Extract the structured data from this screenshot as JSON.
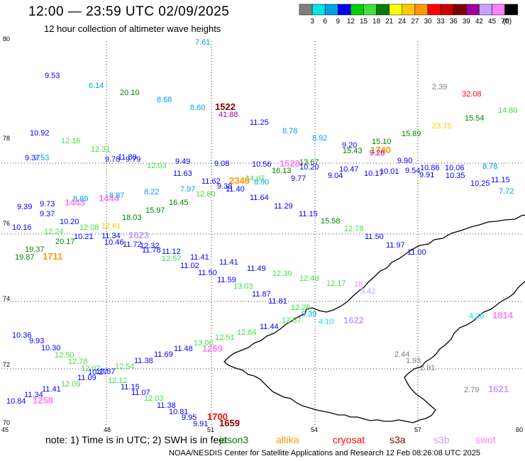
{
  "header": {
    "title": "12:00 — 23:59 UTC 02/09/2025",
    "subtitle": "12 hour collection of altimeter wave heights"
  },
  "scale": {
    "colors": [
      "#808080",
      "#00e5e5",
      "#00a0e8",
      "#0000ff",
      "#00d000",
      "#40e040",
      "#008000",
      "#ffff00",
      "#ffcc00",
      "#ff9900",
      "#ff0000",
      "#cc0000",
      "#800000",
      "#a000a0",
      "#c8a0ff",
      "#ff80ff",
      "#000000"
    ],
    "labels": [
      "3",
      "6",
      "9",
      "12",
      "15",
      "18",
      "21",
      "24",
      "27",
      "30",
      "33",
      "36",
      "39",
      "42",
      "45",
      "70"
    ],
    "unit": "(ft)"
  },
  "map": {
    "lat_labels": [
      "80",
      "78",
      "76",
      "74",
      "72",
      "70"
    ],
    "lon_labels": [
      "45",
      "48",
      "51",
      "54",
      "57",
      "60"
    ]
  },
  "notes": {
    "prefix": "note:  1) Time is in UTC; 2) SWH is in feet",
    "credit": "NOAA/NESDIS Center for Satellite Applications and Research     12 Feb 08:26:08 UTC 2025"
  },
  "satellites": [
    {
      "name": "jason3",
      "color": "#008000"
    },
    {
      "name": "altika",
      "color": "#ff9900"
    },
    {
      "name": "cryosat",
      "color": "#ff0000"
    },
    {
      "name": "s3a",
      "color": "#800000"
    },
    {
      "name": "s3b",
      "color": "#c8a0ff"
    },
    {
      "name": "swot",
      "color": "#ff80ff"
    }
  ],
  "observations": [
    {
      "t": "7.61",
      "c": "#00a0e8"
    },
    {
      "t": "9.53",
      "c": "#0000ff"
    },
    {
      "t": "6.14",
      "c": "#00a0e8"
    },
    {
      "t": "20.10",
      "c": "#008000"
    },
    {
      "t": "8.68",
      "c": "#00a0e8"
    },
    {
      "t": "8.60",
      "c": "#00a0e8"
    },
    {
      "t": "1522",
      "c": "#800000"
    },
    {
      "t": "41.88",
      "c": "#a000a0"
    },
    {
      "t": "2.39",
      "c": "#808080"
    },
    {
      "t": "32.08",
      "c": "#ff0000"
    },
    {
      "t": "15.54",
      "c": "#008000"
    },
    {
      "t": "14.80",
      "c": "#40e040"
    },
    {
      "t": "11.25",
      "c": "#0000ff"
    },
    {
      "t": "8.78",
      "c": "#00a0e8"
    },
    {
      "t": "8.92",
      "c": "#00a0e8"
    },
    {
      "t": "23.15",
      "c": "#ffcc00"
    },
    {
      "t": "10.92",
      "c": "#0000ff"
    },
    {
      "t": "12.16",
      "c": "#40e040"
    },
    {
      "t": "15.89",
      "c": "#008000"
    },
    {
      "t": "15.10",
      "c": "#008000"
    },
    {
      "t": "9.20",
      "c": "#0000ff"
    },
    {
      "t": "15.43",
      "c": "#008000"
    },
    {
      "t": "1740",
      "c": "#ff9900"
    },
    {
      "t": "9.26",
      "c": "#a000a0"
    },
    {
      "t": "12.31",
      "c": "#40e040"
    },
    {
      "t": "9.37",
      "c": "#0000ff"
    },
    {
      "t": "7.53",
      "c": "#00a0e8"
    },
    {
      "t": "9.78",
      "c": "#0000ff"
    },
    {
      "t": "11.80",
      "c": "#0000ff"
    },
    {
      "t": "9.79",
      "c": "#0000ff"
    },
    {
      "t": "12.03",
      "c": "#40e040"
    },
    {
      "t": "9.49",
      "c": "#0000ff"
    },
    {
      "t": "9.08",
      "c": "#0000ff"
    },
    {
      "t": "10.56",
      "c": "#0000ff"
    },
    {
      "t": "1528",
      "c": "#ff80ff"
    },
    {
      "t": "13.67",
      "c": "#008000"
    },
    {
      "t": "10.20",
      "c": "#0000ff"
    },
    {
      "t": "9.90",
      "c": "#0000ff"
    },
    {
      "t": "10.86",
      "c": "#0000ff"
    },
    {
      "t": "10.06",
      "c": "#0000ff"
    },
    {
      "t": "8.78",
      "c": "#00a0e8"
    },
    {
      "t": "11.63",
      "c": "#0000ff"
    },
    {
      "t": "16.13",
      "c": "#008000"
    },
    {
      "t": "10.47",
      "c": "#0000ff"
    },
    {
      "t": "10.17",
      "c": "#0000ff"
    },
    {
      "t": "10.01",
      "c": "#0000ff"
    },
    {
      "t": "9.54",
      "c": "#0000ff"
    },
    {
      "t": "9.91",
      "c": "#0000ff"
    },
    {
      "t": "10.35",
      "c": "#0000ff"
    },
    {
      "t": "11.62",
      "c": "#0000ff"
    },
    {
      "t": "2348",
      "c": "#ff9900"
    },
    {
      "t": "14.07",
      "c": "#40e040"
    },
    {
      "t": "9.77",
      "c": "#0000ff"
    },
    {
      "t": "9.04",
      "c": "#0000ff"
    },
    {
      "t": "10.25",
      "c": "#0000ff"
    },
    {
      "t": "11.15",
      "c": "#0000ff"
    },
    {
      "t": "9.38",
      "c": "#0000ff"
    },
    {
      "t": "8.90",
      "c": "#00a0e8"
    },
    {
      "t": "11.40",
      "c": "#0000ff"
    },
    {
      "t": "7.72",
      "c": "#00a0e8"
    },
    {
      "t": "8.22",
      "c": "#00a0e8"
    },
    {
      "t": "7.97",
      "c": "#00a0e8"
    },
    {
      "t": "12.80",
      "c": "#40e040"
    },
    {
      "t": "9.73",
      "c": "#0000ff"
    },
    {
      "t": "1443",
      "c": "#ff80ff"
    },
    {
      "t": "8.89",
      "c": "#00a0e8"
    },
    {
      "t": "1444",
      "c": "#ff80ff"
    },
    {
      "t": "8.87",
      "c": "#00a0e8"
    },
    {
      "t": "16.45",
      "c": "#008000"
    },
    {
      "t": "11.64",
      "c": "#0000ff"
    },
    {
      "t": "9.39",
      "c": "#0000ff"
    },
    {
      "t": "15.97",
      "c": "#008000"
    },
    {
      "t": "11.29",
      "c": "#0000ff"
    },
    {
      "t": "9.37",
      "c": "#0000ff"
    },
    {
      "t": "18.03",
      "c": "#008000"
    },
    {
      "t": "11.15",
      "c": "#0000ff"
    },
    {
      "t": "10.20",
      "c": "#0000ff"
    },
    {
      "t": "15.58",
      "c": "#008000"
    },
    {
      "t": "10.16",
      "c": "#0000ff"
    },
    {
      "t": "12.24",
      "c": "#40e040"
    },
    {
      "t": "12.08",
      "c": "#40e040"
    },
    {
      "t": "12.61",
      "c": "#ffcc00"
    },
    {
      "t": "12.78",
      "c": "#40e040"
    },
    {
      "t": "10.21",
      "c": "#0000ff"
    },
    {
      "t": "11.34",
      "c": "#0000ff"
    },
    {
      "t": "1623",
      "c": "#c8a0ff"
    },
    {
      "t": "20.17",
      "c": "#008000"
    },
    {
      "t": "10.46",
      "c": "#0000ff"
    },
    {
      "t": "11.72",
      "c": "#0000ff"
    },
    {
      "t": "11.50",
      "c": "#0000ff"
    },
    {
      "t": "12.32",
      "c": "#0000ff"
    },
    {
      "t": "19.37",
      "c": "#008000"
    },
    {
      "t": "11.78",
      "c": "#0000ff"
    },
    {
      "t": "11.97",
      "c": "#0000ff"
    },
    {
      "t": "11.12",
      "c": "#0000ff"
    },
    {
      "t": "19.87",
      "c": "#008000"
    },
    {
      "t": "1711",
      "c": "#ff9900"
    },
    {
      "t": "12.57",
      "c": "#40e040"
    },
    {
      "t": "11.00",
      "c": "#0000ff"
    },
    {
      "t": "11.41",
      "c": "#0000ff"
    },
    {
      "t": "11.02",
      "c": "#0000ff"
    },
    {
      "t": "11.41",
      "c": "#0000ff"
    },
    {
      "t": "11.49",
      "c": "#0000ff"
    },
    {
      "t": "11.50",
      "c": "#0000ff"
    },
    {
      "t": "12.39",
      "c": "#40e040"
    },
    {
      "t": "11.59",
      "c": "#0000ff"
    },
    {
      "t": "12.48",
      "c": "#40e040"
    },
    {
      "t": "12.17",
      "c": "#40e040"
    },
    {
      "t": "18",
      "c": "#ff80ff"
    },
    {
      "t": "13.03",
      "c": "#40e040"
    },
    {
      "t": "9.42",
      "c": "#c8a0ff"
    },
    {
      "t": "11.87",
      "c": "#0000ff"
    },
    {
      "t": "11.81",
      "c": "#0000ff"
    },
    {
      "t": "12.26",
      "c": "#40e040"
    },
    {
      "t": "9.39",
      "c": "#00a0e8"
    },
    {
      "t": "12.57",
      "c": "#40e040"
    },
    {
      "t": "4.10",
      "c": "#00e5e5"
    },
    {
      "t": "1622",
      "c": "#c8a0ff"
    },
    {
      "t": "4.20",
      "c": "#00e5e5"
    },
    {
      "t": "1814",
      "c": "#ff80ff"
    },
    {
      "t": "11.44",
      "c": "#0000ff"
    },
    {
      "t": "12.84",
      "c": "#40e040"
    },
    {
      "t": "10.36",
      "c": "#0000ff"
    },
    {
      "t": "12.51",
      "c": "#40e040"
    },
    {
      "t": "9.93",
      "c": "#0000ff"
    },
    {
      "t": "13.06",
      "c": "#40e040"
    },
    {
      "t": "10.30",
      "c": "#0000ff"
    },
    {
      "t": "11.48",
      "c": "#0000ff"
    },
    {
      "t": "1259",
      "c": "#ff80ff"
    },
    {
      "t": "2.44",
      "c": "#808080"
    },
    {
      "t": "12.50",
      "c": "#40e040"
    },
    {
      "t": "11.69",
      "c": "#0000ff"
    },
    {
      "t": "1.93",
      "c": "#808080"
    },
    {
      "t": "12.78",
      "c": "#40e040"
    },
    {
      "t": "11.38",
      "c": "#0000ff"
    },
    {
      "t": "2.91",
      "c": "#808080"
    },
    {
      "t": "12.02",
      "c": "#40e040"
    },
    {
      "t": "12.54",
      "c": "#40e040"
    },
    {
      "t": "10.87",
      "c": "#0000ff"
    },
    {
      "t": "11.09",
      "c": "#0000ff"
    },
    {
      "t": "10.27",
      "c": "#0000ff"
    },
    {
      "t": "12.12",
      "c": "#40e040"
    },
    {
      "t": "12.09",
      "c": "#40e040"
    },
    {
      "t": "11.15",
      "c": "#0000ff"
    },
    {
      "t": "11.41",
      "c": "#0000ff"
    },
    {
      "t": "2.79",
      "c": "#808080"
    },
    {
      "t": "1621",
      "c": "#c8a0ff"
    },
    {
      "t": "11.07",
      "c": "#0000ff"
    },
    {
      "t": "11.34",
      "c": "#0000ff"
    },
    {
      "t": "12.03",
      "c": "#40e040"
    },
    {
      "t": "10.84",
      "c": "#0000ff"
    },
    {
      "t": "1258",
      "c": "#ff80ff"
    },
    {
      "t": "11.38",
      "c": "#0000ff"
    },
    {
      "t": "10.81",
      "c": "#0000ff"
    },
    {
      "t": "9.95",
      "c": "#0000ff"
    },
    {
      "t": "1700",
      "c": "#ff0000"
    },
    {
      "t": "9.91",
      "c": "#0000ff"
    },
    {
      "t": "1659",
      "c": "#800000"
    }
  ]
}
